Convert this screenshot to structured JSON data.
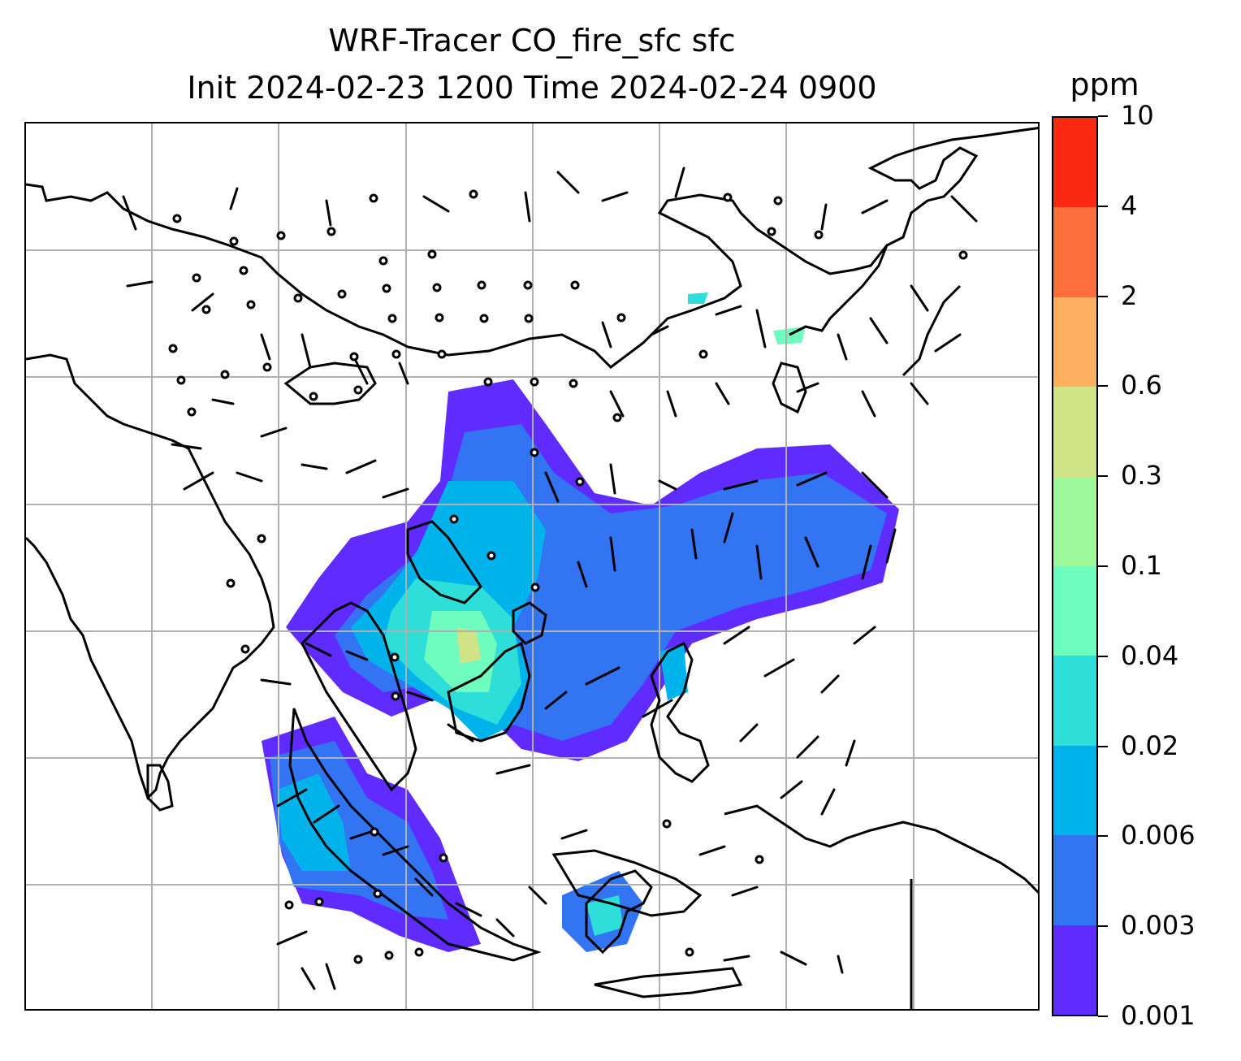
{
  "title": {
    "line1": "WRF-Tracer CO_fire_sfc sfc",
    "line2": "Init 2024-02-23 1200 Time 2024-02-24 0900"
  },
  "colorbar": {
    "unit": "ppm",
    "levels": [
      "0.001",
      "0.003",
      "0.006",
      "0.02",
      "0.04",
      "0.1",
      "0.3",
      "0.6",
      "2",
      "4",
      "10"
    ],
    "colors": [
      "#5f2bff",
      "#3274f2",
      "#00b4eb",
      "#2ddfd8",
      "#6ffcbf",
      "#9ef99a",
      "#d0e387",
      "#fdb05f",
      "#fe6e3c",
      "#fc2912"
    ]
  },
  "map": {
    "gridlines": "on",
    "gridline_color": "#b0b0b0",
    "coastline_color": "#000000",
    "wind_barb_color": "#000000"
  }
}
